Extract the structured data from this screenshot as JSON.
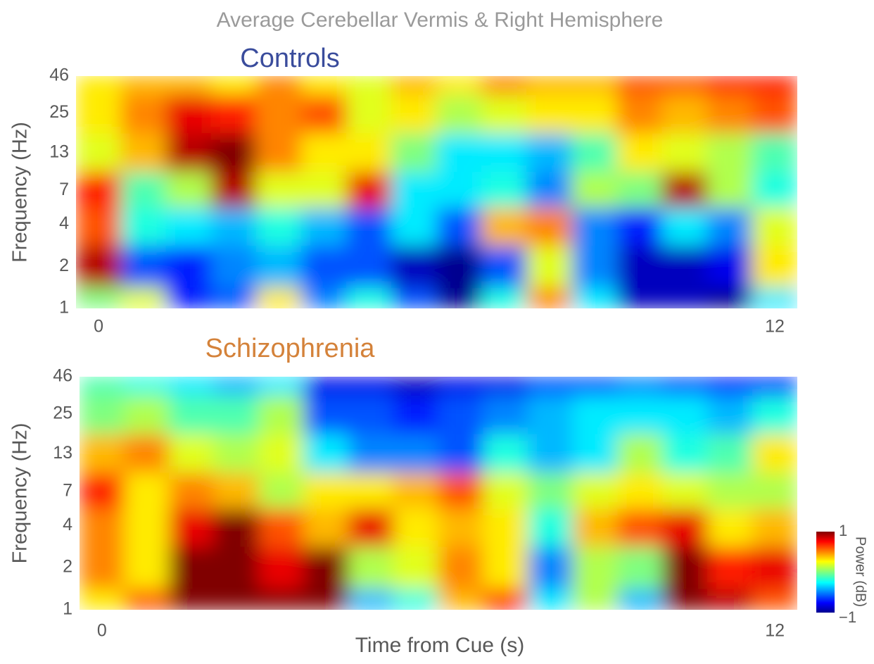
{
  "figure": {
    "title": "Average Cerebellar Vermis & Right Hemisphere",
    "x_label": "Time from Cue (s)",
    "colorbar": {
      "label": "Power (dB)",
      "colormap": "jet",
      "clim": [
        -1,
        1
      ],
      "ticks": [
        {
          "value": -1,
          "label": "−1"
        },
        1
      ]
    }
  },
  "chart_data": [
    {
      "type": "heatmap",
      "title": "Controls",
      "title_color": "#3a4c9c",
      "y_label": "Frequency (Hz)",
      "xlim": [
        -0.4,
        12.4
      ],
      "xticks": [
        0,
        12
      ],
      "ylim": [
        1,
        46
      ],
      "yticks": [
        1,
        2,
        4,
        7,
        13,
        25,
        46
      ],
      "yscale": "log",
      "x": [
        0,
        0.8,
        1.6,
        2.4,
        3.2,
        4,
        4.8,
        5.6,
        6.4,
        7.2,
        8,
        8.8,
        9.6,
        10.4,
        11.2,
        12
      ],
      "y": [
        1,
        2,
        4,
        7,
        13,
        25,
        46
      ],
      "values": [
        [
          0.0,
          0.2,
          -0.7,
          -0.6,
          0.3,
          -0.5,
          -0.2,
          -0.6,
          -1,
          -0.2,
          0.5,
          -0.3,
          -0.9,
          -0.9,
          -1,
          -0.3
        ],
        [
          0.9,
          -0.6,
          -0.7,
          -0.5,
          -0.4,
          -0.6,
          -0.6,
          -0.9,
          -1,
          -0.6,
          0.2,
          -0.5,
          -0.9,
          -0.9,
          -0.8,
          0.3
        ],
        [
          0.6,
          -0.2,
          -0.3,
          -0.4,
          -0.2,
          -0.4,
          -0.6,
          -0.3,
          -0.6,
          0.4,
          0.5,
          -0.5,
          -0.7,
          -0.3,
          -0.5,
          0.2
        ],
        [
          0.7,
          -0.1,
          0.1,
          0.9,
          0.2,
          0.2,
          0.8,
          -0.3,
          -0.3,
          -0.2,
          -0.5,
          0.1,
          0.0,
          0.9,
          0.1,
          -0.2
        ],
        [
          0.2,
          0.4,
          0.9,
          1,
          0.5,
          0.3,
          0.3,
          0.0,
          -0.3,
          -0.3,
          -0.4,
          -0.1,
          0.3,
          0.2,
          0.1,
          -0.1
        ],
        [
          0.3,
          0.5,
          0.8,
          0.7,
          0.5,
          0.6,
          0.2,
          0.3,
          0.1,
          0.2,
          0.3,
          0.3,
          0.5,
          0.4,
          0.5,
          0.6
        ],
        [
          0.3,
          0.4,
          0.4,
          0.3,
          0.5,
          0.3,
          0.2,
          0.4,
          0.3,
          0.5,
          0.4,
          0.4,
          0.6,
          0.6,
          0.7,
          0.7
        ]
      ]
    },
    {
      "type": "heatmap",
      "title": "Schizophrenia",
      "title_color": "#d4823a",
      "y_label": "Frequency (Hz)",
      "xlim": [
        -0.4,
        12.4
      ],
      "xticks": [
        0,
        12
      ],
      "ylim": [
        1,
        46
      ],
      "yticks": [
        1,
        2,
        4,
        7,
        13,
        25,
        46
      ],
      "yscale": "log",
      "x": [
        0,
        0.8,
        1.6,
        2.4,
        3.2,
        4,
        4.8,
        5.6,
        6.4,
        7.2,
        8,
        8.8,
        9.6,
        10.4,
        11.2,
        12
      ],
      "y": [
        1,
        2,
        4,
        7,
        13,
        25,
        46
      ],
      "values": [
        [
          0.3,
          0.6,
          1,
          1,
          1,
          1,
          -0.4,
          -0.2,
          0.4,
          0.7,
          -0.3,
          0.1,
          -0.4,
          1,
          0.9,
          0.6
        ],
        [
          0.5,
          0.3,
          1,
          1,
          0.8,
          1,
          0.1,
          0.2,
          0.5,
          0.3,
          -0.5,
          0.1,
          0.0,
          1,
          0.7,
          0.8
        ],
        [
          0.5,
          0.3,
          0.8,
          1,
          0.6,
          0.4,
          0.8,
          0.3,
          0.4,
          0.3,
          -0.2,
          0.4,
          0.6,
          0.8,
          0.3,
          0.4
        ],
        [
          0.7,
          0.3,
          0.5,
          0.4,
          0.1,
          0.3,
          0.3,
          0.4,
          0.6,
          0.2,
          0.0,
          0.2,
          0.3,
          0.2,
          0.1,
          0.1
        ],
        [
          0.4,
          0.5,
          0.2,
          0.1,
          0.2,
          -0.3,
          -0.5,
          -0.5,
          -0.6,
          -0.2,
          -0.4,
          -0.3,
          0.1,
          -0.2,
          -0.1,
          0.3
        ],
        [
          0,
          0.1,
          -0.1,
          -0.1,
          0.1,
          -0.6,
          -0.6,
          -0.7,
          -0.6,
          -0.5,
          -0.4,
          -0.3,
          -0.3,
          -0.3,
          -0.4,
          -0.2
        ],
        [
          -0.1,
          -0.2,
          -0.3,
          -0.4,
          -0.3,
          -0.8,
          -0.8,
          -0.9,
          -0.8,
          -0.8,
          -0.6,
          -0.6,
          -0.5,
          -0.6,
          -0.7,
          -0.7
        ]
      ]
    }
  ]
}
